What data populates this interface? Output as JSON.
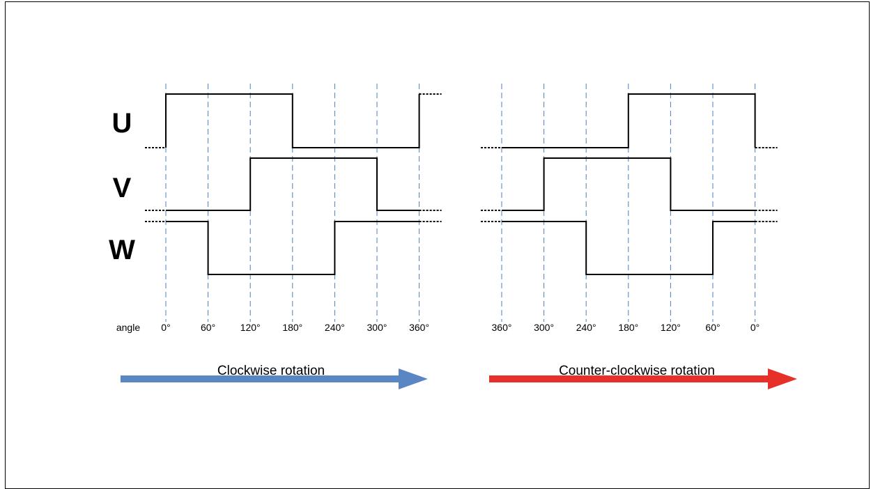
{
  "signals": [
    "U",
    "V",
    "W"
  ],
  "angle_label": "angle",
  "panels": [
    {
      "id": "clockwise",
      "caption": "Clockwise rotation",
      "angle_ticks": [
        "0°",
        "60°",
        "120°",
        "180°",
        "240°",
        "300°",
        "360°"
      ],
      "arrow_color": "#5b86c4",
      "levels": {
        "U": [
          1,
          1,
          1,
          0,
          0,
          0
        ],
        "V": [
          0,
          0,
          1,
          1,
          1,
          0
        ],
        "W": [
          1,
          0,
          0,
          0,
          1,
          1
        ]
      },
      "edges": {
        "U": {
          "start": 0,
          "end": 1
        },
        "V": {
          "start": 0,
          "end": 0
        },
        "W": {
          "start": 1,
          "end": 1
        }
      }
    },
    {
      "id": "counter-clockwise",
      "caption": "Counter-clockwise rotation",
      "angle_ticks": [
        "360°",
        "300°",
        "240°",
        "180°",
        "120°",
        "60°",
        "0°"
      ],
      "arrow_color": "#e8302b",
      "levels": {
        "U": [
          0,
          0,
          0,
          1,
          1,
          1
        ],
        "V": [
          0,
          1,
          1,
          1,
          0,
          0
        ],
        "W": [
          1,
          1,
          0,
          0,
          0,
          1
        ]
      },
      "edges": {
        "U": {
          "start": 0,
          "end": 0
        },
        "V": {
          "start": 0,
          "end": 0
        },
        "W": {
          "start": 1,
          "end": 1
        }
      }
    }
  ],
  "colors": {
    "gridline": "#4a7fc0",
    "trace": "#000000"
  }
}
